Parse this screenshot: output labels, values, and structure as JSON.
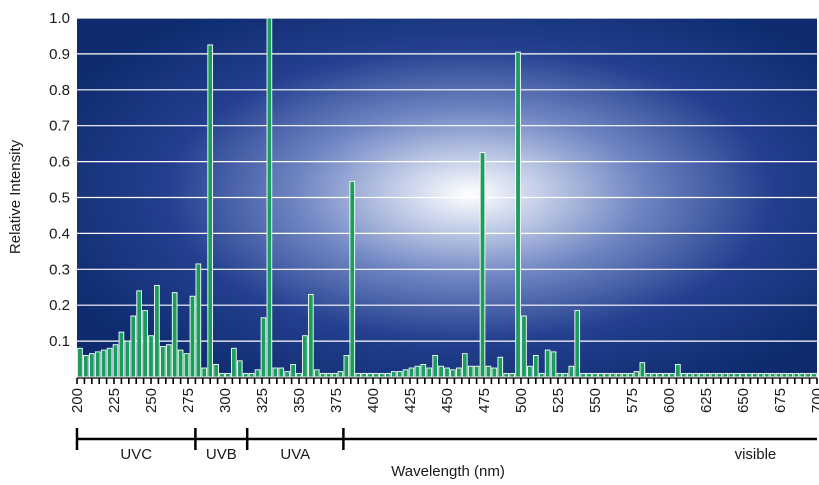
{
  "chart_data": {
    "type": "bar",
    "ylabel": "Relative Intensity",
    "xlabel": "Wavelength (nm)",
    "xlim": [
      200,
      700
    ],
    "ylim": [
      0,
      1.0
    ],
    "yticks": [
      0.1,
      0.2,
      0.3,
      0.4,
      0.5,
      0.6,
      0.7,
      0.8,
      0.9,
      1.0
    ],
    "ytick_labels": [
      "0.1",
      "0.2",
      "0.3",
      "0.4",
      "0.5",
      "0.6",
      "0.7",
      "0.8",
      "0.9",
      "1.0"
    ],
    "xticks": [
      200,
      225,
      250,
      275,
      300,
      325,
      350,
      375,
      400,
      425,
      450,
      475,
      500,
      525,
      550,
      575,
      600,
      625,
      650,
      675,
      700
    ],
    "xtick_labels": [
      "200",
      "225",
      "250",
      "275",
      "300",
      "325",
      "350",
      "375",
      "400",
      "425",
      "450",
      "475",
      "500",
      "525",
      "550",
      "575",
      "600",
      "625",
      "650",
      "675",
      "700"
    ],
    "grid": true,
    "background": "radial gradient, white center to dark blue",
    "bar_color": "#1a9e5c",
    "bar_edge_color": "#ffffff",
    "bands": [
      {
        "label": "UVC",
        "start": 200,
        "end": 280
      },
      {
        "label": "UVB",
        "start": 280,
        "end": 315
      },
      {
        "label": "UVA",
        "start": 315,
        "end": 380
      },
      {
        "label": "visible",
        "start": 380,
        "end": 700
      }
    ],
    "series": [
      {
        "x": [
          202,
          206,
          210,
          214,
          218,
          222,
          226,
          230,
          234,
          238,
          242,
          246,
          250,
          254,
          258,
          262,
          266,
          270,
          274,
          278,
          282,
          286,
          290,
          294,
          298,
          302,
          306,
          310,
          314,
          318,
          322,
          326,
          330,
          334,
          338,
          342,
          346,
          350,
          354,
          358,
          362,
          366,
          370,
          374,
          378,
          382,
          386,
          390,
          394,
          398,
          402,
          406,
          410,
          414,
          418,
          422,
          426,
          430,
          434,
          438,
          442,
          446,
          450,
          454,
          458,
          462,
          466,
          470,
          474,
          478,
          482,
          486,
          490,
          494,
          498,
          502,
          506,
          510,
          514,
          518,
          522,
          526,
          530,
          534,
          538,
          542,
          546,
          550,
          554,
          558,
          562,
          566,
          570,
          574,
          578,
          582,
          586,
          590,
          594,
          598,
          602,
          606,
          610,
          614,
          618,
          622,
          626,
          630,
          634,
          638,
          642,
          646,
          650,
          654,
          658,
          662,
          666,
          670,
          674,
          678,
          682,
          686,
          690,
          694,
          698
        ],
        "values": [
          0.08,
          0.06,
          0.065,
          0.07,
          0.075,
          0.08,
          0.09,
          0.125,
          0.1,
          0.17,
          0.24,
          0.185,
          0.115,
          0.255,
          0.085,
          0.09,
          0.235,
          0.075,
          0.065,
          0.225,
          0.315,
          0.025,
          0.925,
          0.035,
          0.01,
          0.01,
          0.08,
          0.045,
          0.01,
          0.01,
          0.02,
          0.165,
          1.0,
          0.025,
          0.025,
          0.015,
          0.035,
          0.01,
          0.115,
          0.23,
          0.02,
          0.01,
          0.01,
          0.01,
          0.015,
          0.06,
          0.545,
          0.01,
          0.01,
          0.01,
          0.01,
          0.01,
          0.01,
          0.015,
          0.015,
          0.02,
          0.025,
          0.03,
          0.035,
          0.025,
          0.06,
          0.03,
          0.025,
          0.02,
          0.025,
          0.065,
          0.03,
          0.03,
          0.625,
          0.03,
          0.025,
          0.055,
          0.01,
          0.01,
          0.905,
          0.17,
          0.03,
          0.06,
          0.01,
          0.075,
          0.07,
          0.01,
          0.01,
          0.03,
          0.185,
          0.01,
          0.01,
          0.01,
          0.01,
          0.01,
          0.01,
          0.01,
          0.01,
          0.01,
          0.015,
          0.04,
          0.01,
          0.01,
          0.01,
          0.01,
          0.01,
          0.035,
          0.01,
          0.01,
          0.01,
          0.01,
          0.01,
          0.01,
          0.01,
          0.01,
          0.01,
          0.01,
          0.01,
          0.01,
          0.01,
          0.01,
          0.01,
          0.01,
          0.01,
          0.01,
          0.01,
          0.01,
          0.01,
          0.01,
          0.01
        ]
      }
    ]
  }
}
